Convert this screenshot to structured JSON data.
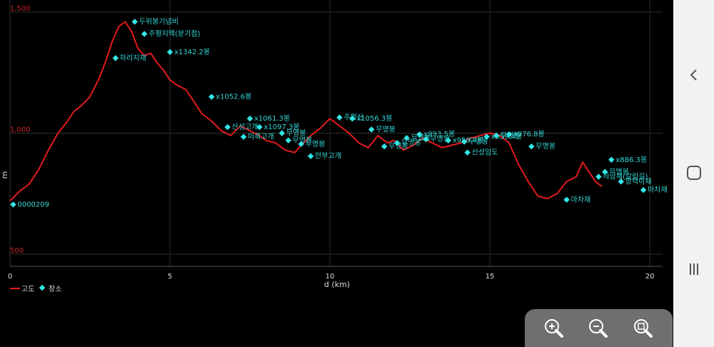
{
  "chart_data": {
    "type": "line",
    "xlabel": "d (km)",
    "ylabel": "m",
    "xlim": [
      0,
      20.4
    ],
    "ylim": [
      450,
      1550
    ],
    "x_ticks": [
      0,
      5,
      10,
      15,
      20
    ],
    "x_tick_labels": [
      "0",
      "5",
      "10",
      "15",
      "20"
    ],
    "y_ticks": [
      500,
      1000,
      1500
    ],
    "y_tick_labels": [
      "500",
      "1,000",
      "1,500"
    ],
    "grid": true,
    "legend_position": "bottom-left",
    "legend": [
      {
        "label": "고도",
        "color": "#e31a1c",
        "marker": "line"
      },
      {
        "label": "장소",
        "color": "#33e6e6",
        "marker": "diamond"
      }
    ],
    "series": [
      {
        "name": "고도",
        "color": "#e31a1c",
        "x": [
          0.0,
          0.3,
          0.6,
          0.9,
          1.2,
          1.5,
          1.8,
          2.0,
          2.2,
          2.5,
          2.8,
          3.0,
          3.2,
          3.4,
          3.6,
          3.8,
          4.0,
          4.2,
          4.4,
          4.6,
          4.8,
          5.0,
          5.2,
          5.5,
          5.8,
          6.0,
          6.3,
          6.6,
          6.9,
          7.2,
          7.5,
          7.8,
          8.0,
          8.3,
          8.6,
          8.9,
          9.1,
          9.4,
          9.7,
          10.0,
          10.3,
          10.6,
          10.9,
          11.2,
          11.5,
          11.8,
          12.0,
          12.3,
          12.6,
          12.9,
          13.2,
          13.5,
          13.8,
          14.1,
          14.4,
          14.7,
          15.0,
          15.3,
          15.6,
          15.9,
          16.2,
          16.5,
          16.8,
          17.1,
          17.4,
          17.7,
          17.9,
          18.1,
          18.3,
          18.5
        ],
        "values": [
          720,
          760,
          790,
          850,
          930,
          1000,
          1050,
          1090,
          1110,
          1150,
          1230,
          1300,
          1380,
          1440,
          1460,
          1420,
          1350,
          1320,
          1330,
          1290,
          1260,
          1220,
          1200,
          1180,
          1120,
          1080,
          1050,
          1010,
          990,
          1030,
          1010,
          990,
          970,
          960,
          930,
          920,
          950,
          990,
          1020,
          1060,
          1030,
          1000,
          960,
          940,
          990,
          960,
          970,
          930,
          950,
          980,
          960,
          940,
          950,
          960,
          980,
          990,
          1000,
          990,
          960,
          870,
          800,
          740,
          730,
          750,
          800,
          820,
          880,
          840,
          800,
          780
        ]
      }
    ],
    "places": [
      {
        "label": "0000209",
        "x": 0.1,
        "y": 705
      },
      {
        "label": "두위봉기념비",
        "x": 3.9,
        "y": 1460
      },
      {
        "label": "주평지맥(분기점)",
        "x": 4.2,
        "y": 1410
      },
      {
        "label": "하리지재",
        "x": 3.3,
        "y": 1310
      },
      {
        "label": "x1342.2봉",
        "x": 5.0,
        "y": 1335
      },
      {
        "label": "x1052.6봉",
        "x": 6.3,
        "y": 1150
      },
      {
        "label": "x1061.3봉",
        "x": 7.5,
        "y": 1060
      },
      {
        "label": "x1097.3봉",
        "x": 7.8,
        "y": 1025
      },
      {
        "label": "산성고개",
        "x": 6.8,
        "y": 1025
      },
      {
        "label": "미륵고개",
        "x": 7.3,
        "y": 985
      },
      {
        "label": "무명봉",
        "x": 8.5,
        "y": 1000
      },
      {
        "label": "무명봉",
        "x": 8.7,
        "y": 970
      },
      {
        "label": "무명봉",
        "x": 9.1,
        "y": 955
      },
      {
        "label": "안부고개",
        "x": 9.4,
        "y": 905
      },
      {
        "label": "주평산",
        "x": 10.3,
        "y": 1065
      },
      {
        "label": "x1056.3봉",
        "x": 10.7,
        "y": 1060
      },
      {
        "label": "무명봉",
        "x": 11.3,
        "y": 1015
      },
      {
        "label": "무명봉",
        "x": 11.7,
        "y": 945
      },
      {
        "label": "무명봉",
        "x": 12.1,
        "y": 960
      },
      {
        "label": "무명봉",
        "x": 12.4,
        "y": 980
      },
      {
        "label": "x993.5봉",
        "x": 12.8,
        "y": 995
      },
      {
        "label": "무명봉",
        "x": 13.0,
        "y": 975
      },
      {
        "label": "x959.4봉",
        "x": 13.7,
        "y": 970
      },
      {
        "label": "무명봉",
        "x": 14.2,
        "y": 965
      },
      {
        "label": "산성임도",
        "x": 14.3,
        "y": 920
      },
      {
        "label": "x959.4봉",
        "x": 14.9,
        "y": 985
      },
      {
        "label": "무명봉",
        "x": 15.2,
        "y": 990
      },
      {
        "label": "x976.8봉",
        "x": 15.6,
        "y": 995
      },
      {
        "label": "무명봉",
        "x": 16.3,
        "y": 945
      },
      {
        "label": "마차재",
        "x": 17.4,
        "y": 725
      },
      {
        "label": "x886.3봉",
        "x": 18.8,
        "y": 890
      },
      {
        "label": "무명봉",
        "x": 18.6,
        "y": 840
      },
      {
        "label": "하남재(갈림길)",
        "x": 18.4,
        "y": 820
      },
      {
        "label": "망덕이재",
        "x": 19.1,
        "y": 800
      },
      {
        "label": "마차재",
        "x": 19.8,
        "y": 765
      }
    ]
  },
  "ui": {
    "nav_back_icon": "back-chevron-icon",
    "nav_home_icon": "home-square-icon",
    "nav_recents_icon": "recents-lines-icon",
    "zoom_in_icon": "zoom-in-icon",
    "zoom_out_icon": "zoom-out-icon",
    "zoom_fit_icon": "zoom-fit-icon"
  }
}
